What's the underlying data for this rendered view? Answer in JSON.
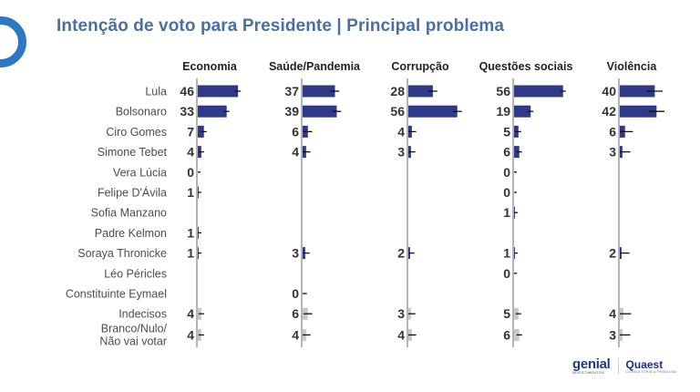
{
  "title": "Intenção de voto para Presidente | Principal problema",
  "brands": {
    "genial": "genial",
    "genial_sub": "INVESTIMENTOS",
    "quaest": "Quaest",
    "quaest_sub": "CONSULTORIA & PESQUISA"
  },
  "colors": {
    "bar_candidate": "#2e3a87",
    "bar_other": "#c8c8c8",
    "axis": "#b5b5b5",
    "error_bar": "#111111",
    "title": "#4a6fa5",
    "logo": "#2f77c3"
  },
  "chart_data": {
    "type": "bar",
    "orientation": "horizontal",
    "title": "Intenção de voto para Presidente | Principal problema",
    "categories": [
      "Lula",
      "Bolsonaro",
      "Ciro Gomes",
      "Simone Tebet",
      "Vera Lúcia",
      "Felipe D'Ávila",
      "Sofia Manzano",
      "Padre Kelmon",
      "Soraya Thronicke",
      "Léo Péricles",
      "Constituinte Eymael",
      "Indecisos",
      "Branco/Nulo/\nNão vai votar"
    ],
    "category_kind": [
      "candidate",
      "candidate",
      "candidate",
      "candidate",
      "candidate",
      "candidate",
      "candidate",
      "candidate",
      "candidate",
      "candidate",
      "candidate",
      "other",
      "other"
    ],
    "series": [
      {
        "name": "Economia",
        "values": [
          46,
          33,
          7,
          4,
          0,
          1,
          null,
          1,
          1,
          null,
          null,
          4,
          4
        ],
        "error": 3
      },
      {
        "name": "Saúde/Pandemia",
        "values": [
          37,
          39,
          6,
          4,
          null,
          null,
          null,
          null,
          3,
          null,
          0,
          6,
          4
        ],
        "error": 5
      },
      {
        "name": "Corrupção",
        "values": [
          28,
          56,
          4,
          3,
          null,
          null,
          null,
          null,
          2,
          null,
          null,
          3,
          4
        ],
        "error": 5
      },
      {
        "name": "Questões sociais",
        "values": [
          56,
          19,
          5,
          6,
          0,
          0,
          1,
          null,
          1,
          0,
          null,
          5,
          6
        ],
        "error": 3
      },
      {
        "name": "Violência",
        "values": [
          40,
          42,
          6,
          3,
          null,
          null,
          null,
          null,
          2,
          null,
          null,
          4,
          3
        ],
        "error": 9
      }
    ],
    "xlabel": "",
    "ylabel": "",
    "xlim": [
      0,
      60
    ],
    "grid": false,
    "legend": "none",
    "value_unit": "%"
  }
}
